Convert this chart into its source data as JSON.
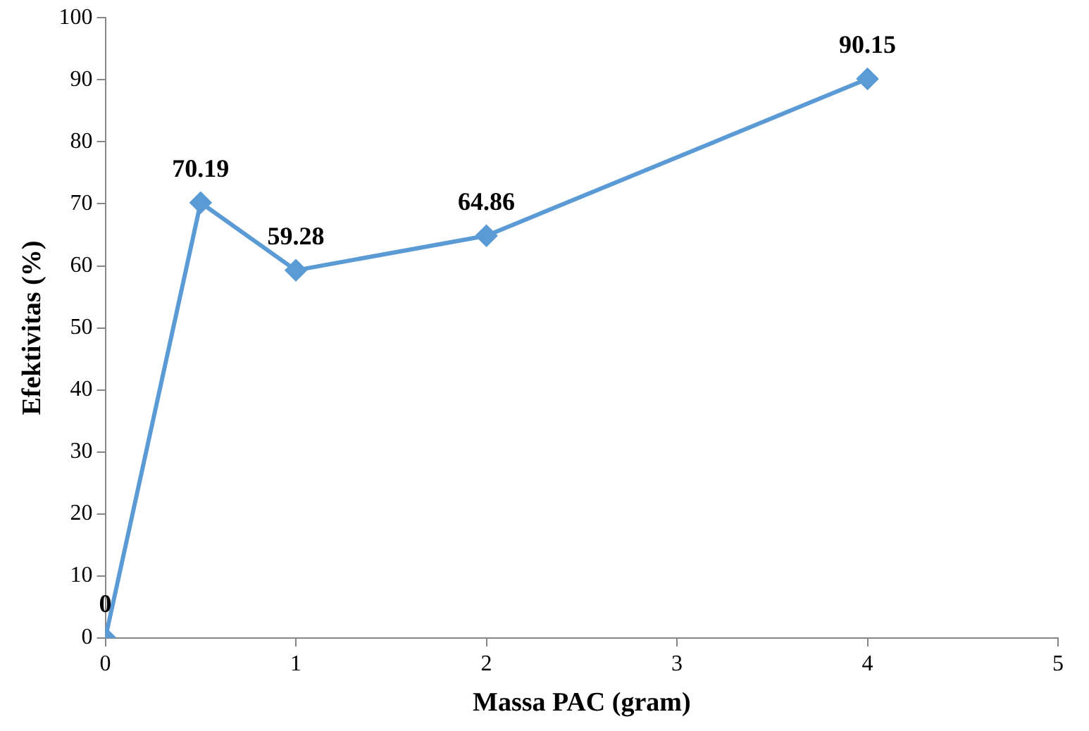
{
  "chart_data": {
    "type": "line",
    "xlabel": "Massa PAC (gram)",
    "ylabel": "Efektivitas (%)",
    "x": [
      0,
      0.5,
      1,
      2,
      4
    ],
    "series": [
      {
        "color": "#5b9bd5",
        "values": [
          0,
          70.19,
          59.28,
          64.86,
          90.15
        ]
      }
    ],
    "xlim": [
      0,
      5
    ],
    "xticks": [
      0,
      1,
      2,
      3,
      4,
      5
    ],
    "ylim": [
      0,
      100
    ],
    "yticks": [
      0,
      10,
      20,
      30,
      40,
      50,
      60,
      70,
      80,
      90,
      100
    ],
    "grid": false,
    "legend": false,
    "marker": "diamond",
    "line_style": "solid",
    "data_labels": true
  }
}
